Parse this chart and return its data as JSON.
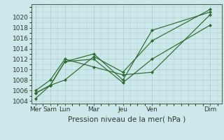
{
  "background_color": "#cce8ea",
  "grid_color": "#aacccc",
  "line_color": "#2d6a2d",
  "marker_color": "#2d6a2d",
  "xlabel": "Pression niveau de la mer( hPa )",
  "xlabel_fontsize": 7.5,
  "tick_fontsize": 6.5,
  "ylim": [
    1003.5,
    1022.5
  ],
  "yticks": [
    1004,
    1006,
    1008,
    1010,
    1012,
    1014,
    1016,
    1018,
    1020
  ],
  "x_labels": [
    "Mer",
    "Sam",
    "Lun",
    "Mar",
    "Jeu",
    "Ven",
    "Dim"
  ],
  "x_positions": [
    0,
    1,
    2,
    4,
    6,
    8,
    12
  ],
  "xlim": [
    -0.3,
    12.8
  ],
  "lines": [
    [
      1004.5,
      1007.0,
      1008.0,
      1012.5,
      1009.5,
      1015.5,
      1021.5
    ],
    [
      1005.5,
      1007.0,
      1011.5,
      1013.0,
      1008.0,
      1017.5,
      1021.0
    ],
    [
      1005.5,
      1007.0,
      1011.5,
      1012.0,
      1007.5,
      1012.0,
      1018.5
    ],
    [
      1006.0,
      1008.0,
      1012.0,
      1010.5,
      1009.0,
      1009.5,
      1020.5
    ]
  ]
}
